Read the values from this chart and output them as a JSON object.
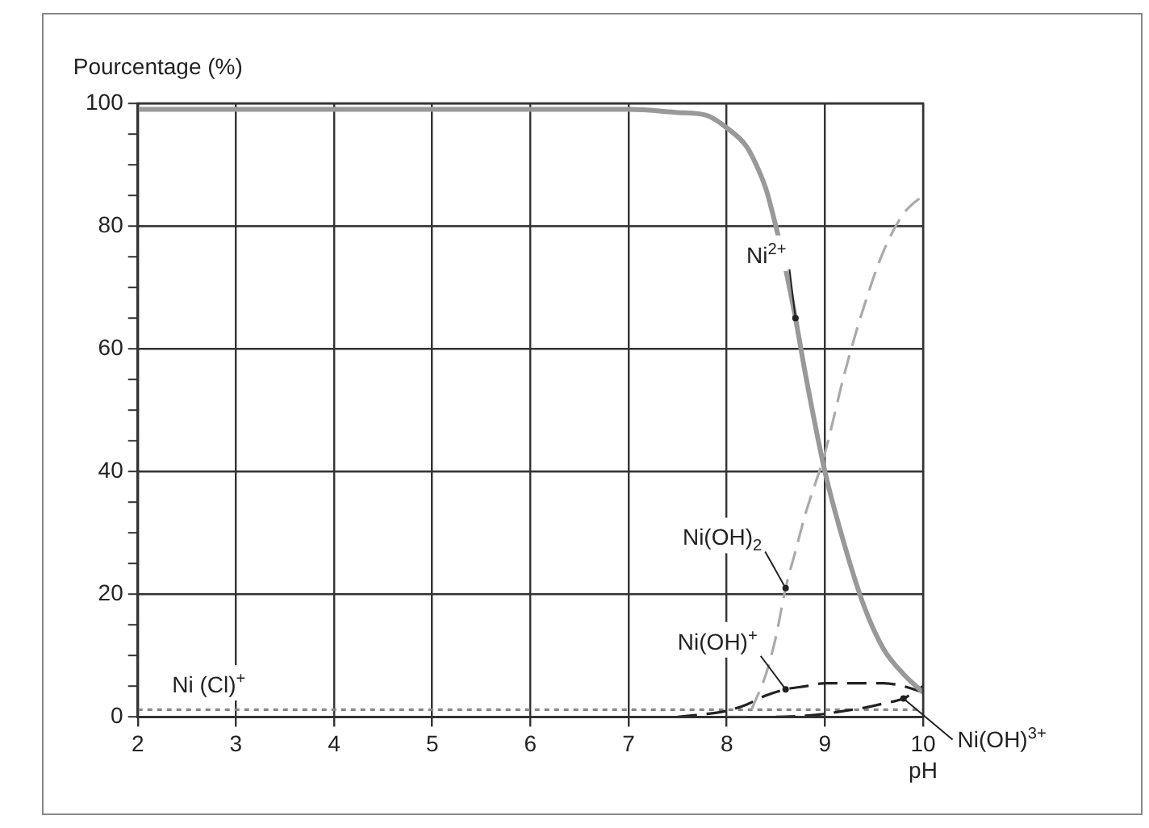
{
  "chart_data": {
    "type": "line",
    "xlabel": "pH",
    "ylabel": "Pourcentage (%)",
    "xlim": [
      2,
      10
    ],
    "xticks": [
      2,
      3,
      4,
      5,
      6,
      7,
      8,
      9,
      10
    ],
    "ylim": [
      0,
      100
    ],
    "yticks": [
      0,
      {
        "value": 5,
        "label": null
      },
      {
        "value": 10,
        "label": null
      },
      {
        "value": 15,
        "label": null
      },
      20,
      {
        "value": 25,
        "label": null
      },
      {
        "value": 30,
        "label": null
      },
      {
        "value": 35,
        "label": null
      },
      40,
      {
        "value": 45,
        "label": null
      },
      {
        "value": 50,
        "label": null
      },
      {
        "value": 55,
        "label": null
      },
      60,
      {
        "value": 65,
        "label": null
      },
      {
        "value": 70,
        "label": null
      },
      {
        "value": 75,
        "label": null
      },
      80,
      {
        "value": 85,
        "label": null
      },
      {
        "value": 90,
        "label": null
      },
      {
        "value": 95,
        "label": null
      },
      100
    ],
    "grid": true,
    "legend": false,
    "series": [
      {
        "name": "Ni$^{2+}$",
        "color": "#999999",
        "line_style": "solid",
        "x": [
          2,
          3,
          4,
          5,
          6,
          7,
          7.5,
          7.8,
          8,
          8.2,
          8.3,
          8.4,
          8.5,
          8.6,
          8.7,
          8.8,
          9,
          9.2,
          9.4,
          9.6,
          9.8,
          10
        ],
        "values": [
          99,
          99,
          99,
          99,
          99,
          99,
          98.5,
          98,
          96,
          93,
          90,
          86,
          80,
          73,
          65,
          56,
          40,
          28,
          18,
          11,
          7,
          4
        ]
      },
      {
        "name": "Ni(OH)$_{2}$",
        "color": "#aaaaaa",
        "line_style": "dashed",
        "x": [
          8,
          8.2,
          8.3,
          8.4,
          8.5,
          8.6,
          8.7,
          8.8,
          9,
          9.2,
          9.4,
          9.6,
          9.8,
          10
        ],
        "values": [
          0,
          0,
          3,
          7,
          13,
          21,
          27,
          33,
          43,
          56,
          67,
          76,
          82,
          85
        ]
      },
      {
        "name": "Ni(OH)$^{+}$",
        "color": "#222222",
        "line_style": "dashed",
        "x": [
          7.5,
          7.8,
          8,
          8.2,
          8.4,
          8.6,
          8.8,
          9,
          9.2,
          9.4,
          9.6,
          9.8,
          10
        ],
        "values": [
          0,
          0.5,
          1,
          2,
          3.5,
          4.5,
          5,
          5.5,
          5.5,
          5.5,
          5.5,
          5,
          4
        ]
      },
      {
        "name": "Ni(OH)$^{3+}$",
        "color": "#222222",
        "line_style": "dashed",
        "x": [
          8.5,
          8.8,
          9,
          9.2,
          9.4,
          9.6,
          9.8,
          10
        ],
        "values": [
          0,
          0.2,
          0.5,
          1,
          1.5,
          2.2,
          3,
          5
        ]
      },
      {
        "name": "Ni (Cl)$^{+}$",
        "color": "#888888",
        "line_style": "dotted",
        "x": [
          2,
          3,
          4,
          5,
          6,
          7,
          8,
          9,
          10
        ],
        "values": [
          1.2,
          1.2,
          1.2,
          1.2,
          1.2,
          1.2,
          1.2,
          1.2,
          1.2
        ]
      }
    ]
  }
}
